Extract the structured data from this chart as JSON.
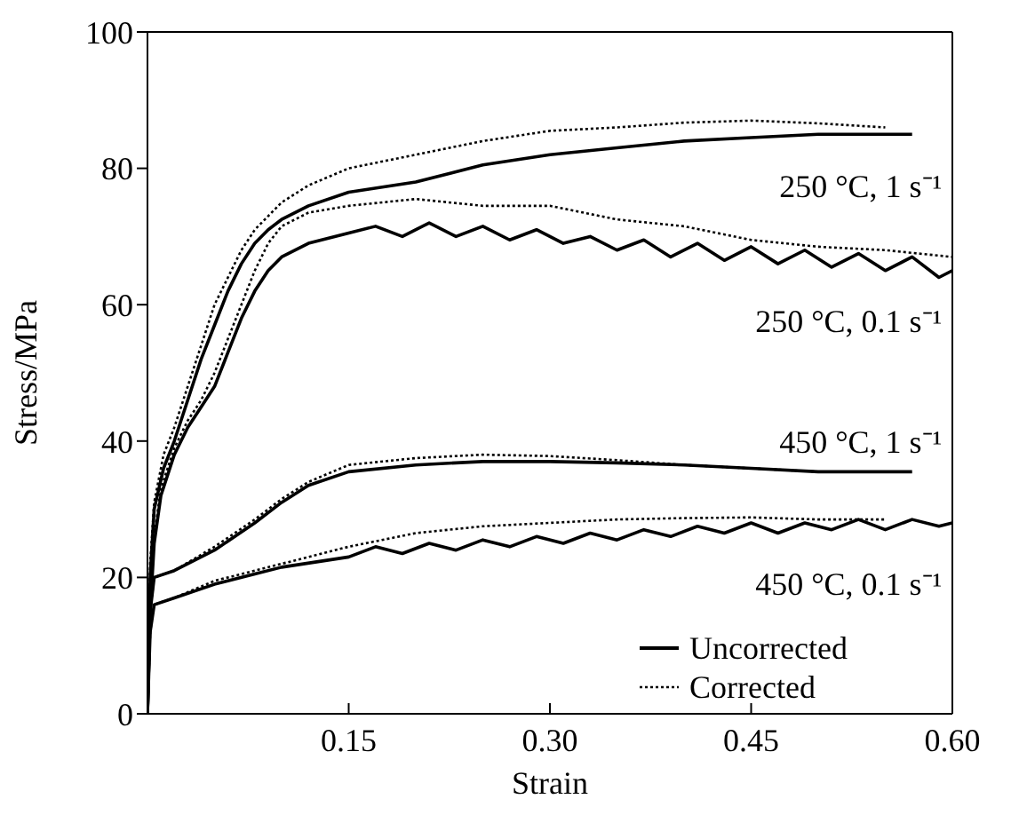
{
  "chart_data": {
    "type": "line",
    "xlabel": "Strain",
    "ylabel": "Stress/MPa",
    "xlim": [
      0,
      0.6
    ],
    "ylim": [
      0,
      100
    ],
    "xticks": [
      {
        "value": 0,
        "label": null
      },
      0.15,
      {
        "value": 0.3,
        "label": "0.30"
      },
      0.45,
      {
        "value": 0.6,
        "label": "0.60"
      }
    ],
    "yticks": [
      0,
      20,
      40,
      60,
      80,
      100
    ],
    "legend": "bottom right",
    "marker": "none",
    "annotations": [
      "250 °C, 1 s⁻¹",
      "250 °C, 0.1 s⁻¹",
      "450 °C, 1 s⁻¹",
      "450 °C, 0.1 s⁻¹"
    ],
    "series": [
      {
        "name": "Uncorrected",
        "color": "#000000",
        "line_style": "solid",
        "x": [
          0,
          0.002,
          0.005,
          0.012,
          0.02,
          0.03,
          0.04,
          0.05,
          0.06,
          0.07,
          0.08,
          0.09,
          0.1,
          0.12,
          0.15,
          0.2,
          0.25,
          0.3,
          0.35,
          0.4,
          0.45,
          0.5,
          0.57
        ],
        "values": [
          0,
          20,
          30,
          36,
          40,
          46,
          52,
          57,
          62,
          66,
          69,
          71,
          72.5,
          74.5,
          76.5,
          78,
          80.5,
          82,
          83,
          84,
          84.5,
          85,
          85
        ]
      },
      {
        "name": "Corrected",
        "color": "#000000",
        "line_style": "dotted",
        "x": [
          0,
          0.002,
          0.005,
          0.012,
          0.02,
          0.03,
          0.04,
          0.05,
          0.06,
          0.07,
          0.08,
          0.09,
          0.1,
          0.12,
          0.15,
          0.2,
          0.25,
          0.3,
          0.35,
          0.4,
          0.45,
          0.5,
          0.55
        ],
        "values": [
          0,
          22,
          31,
          38,
          42,
          48,
          54,
          60,
          64,
          68,
          71,
          73,
          75,
          77.5,
          80,
          82,
          84,
          85.5,
          86,
          86.7,
          87,
          86.6,
          86
        ]
      },
      {
        "color": "#000000",
        "line_style": "solid",
        "x": [
          0,
          0.002,
          0.005,
          0.01,
          0.02,
          0.03,
          0.04,
          0.05,
          0.06,
          0.07,
          0.08,
          0.09,
          0.1,
          0.12,
          0.15,
          0.17,
          0.19,
          0.21,
          0.23,
          0.25,
          0.27,
          0.29,
          0.31,
          0.33,
          0.35,
          0.37,
          0.39,
          0.41,
          0.43,
          0.45,
          0.47,
          0.49,
          0.51,
          0.53,
          0.55,
          0.57,
          0.59,
          0.6
        ],
        "values": [
          0,
          15,
          25,
          32,
          38,
          42,
          45,
          48,
          53,
          58,
          62,
          65,
          67,
          69,
          70.5,
          71.5,
          70,
          72,
          70,
          71.5,
          69.5,
          71,
          69,
          70,
          68,
          69.5,
          67,
          69,
          66.5,
          68.5,
          66,
          68,
          65.5,
          67.5,
          65,
          67,
          64,
          65
        ]
      },
      {
        "color": "#000000",
        "line_style": "dotted",
        "x": [
          0,
          0.002,
          0.005,
          0.01,
          0.02,
          0.03,
          0.04,
          0.05,
          0.06,
          0.07,
          0.08,
          0.09,
          0.1,
          0.12,
          0.15,
          0.2,
          0.25,
          0.3,
          0.35,
          0.4,
          0.45,
          0.5,
          0.55,
          0.6
        ],
        "values": [
          0,
          16,
          26,
          33,
          39,
          43,
          46,
          50,
          55,
          60,
          65,
          69,
          71.5,
          73.5,
          74.5,
          75.5,
          74.5,
          74.5,
          72.5,
          71.5,
          69.5,
          68.5,
          68,
          67
        ]
      },
      {
        "color": "#000000",
        "line_style": "solid",
        "x": [
          0,
          0.002,
          0.005,
          0.02,
          0.05,
          0.08,
          0.1,
          0.12,
          0.15,
          0.2,
          0.25,
          0.3,
          0.35,
          0.4,
          0.45,
          0.5,
          0.57
        ],
        "values": [
          0,
          15,
          20,
          21,
          24,
          28,
          31,
          33.5,
          35.5,
          36.5,
          37,
          37,
          36.8,
          36.5,
          36,
          35.5,
          35.5
        ]
      },
      {
        "color": "#000000",
        "line_style": "dotted",
        "x": [
          0,
          0.002,
          0.005,
          0.02,
          0.05,
          0.08,
          0.1,
          0.12,
          0.15,
          0.2,
          0.25,
          0.3,
          0.35,
          0.4,
          0.45,
          0.5
        ],
        "values": [
          0,
          15,
          20,
          21,
          24.5,
          28.5,
          31.5,
          34,
          36.5,
          37.5,
          38,
          37.8,
          37.2,
          36.5,
          36,
          35.5
        ]
      },
      {
        "color": "#000000",
        "line_style": "solid",
        "x": [
          0,
          0.002,
          0.005,
          0.02,
          0.05,
          0.08,
          0.1,
          0.15,
          0.17,
          0.19,
          0.21,
          0.23,
          0.25,
          0.27,
          0.29,
          0.31,
          0.33,
          0.35,
          0.37,
          0.39,
          0.41,
          0.43,
          0.45,
          0.47,
          0.49,
          0.51,
          0.53,
          0.55,
          0.57,
          0.59,
          0.6
        ],
        "values": [
          0,
          12,
          16,
          17,
          19,
          20.5,
          21.5,
          23,
          24.5,
          23.5,
          25,
          24,
          25.5,
          24.5,
          26,
          25,
          26.5,
          25.5,
          27,
          26,
          27.5,
          26.5,
          28,
          26.5,
          28,
          27,
          28.5,
          27,
          28.5,
          27.5,
          28
        ]
      },
      {
        "color": "#000000",
        "line_style": "dotted",
        "x": [
          0,
          0.002,
          0.005,
          0.02,
          0.05,
          0.08,
          0.1,
          0.15,
          0.2,
          0.25,
          0.3,
          0.35,
          0.4,
          0.45,
          0.5,
          0.55
        ],
        "values": [
          0,
          12,
          16,
          17,
          19.5,
          21,
          22,
          24.5,
          26.5,
          27.5,
          28,
          28.5,
          28.7,
          28.8,
          28.5,
          28.5
        ]
      }
    ]
  }
}
